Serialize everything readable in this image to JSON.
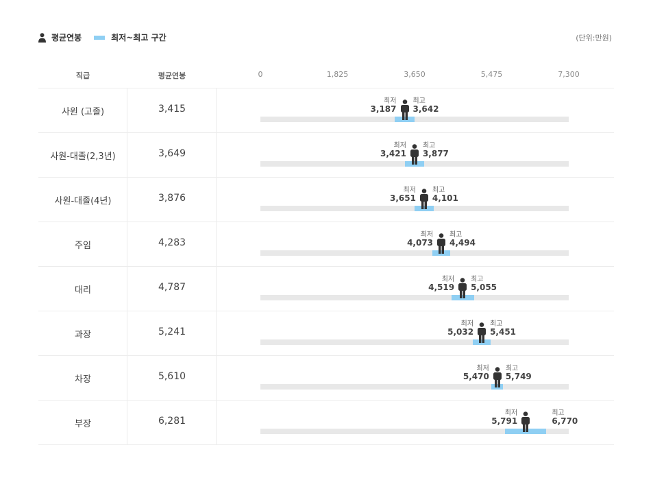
{
  "legend": {
    "avg_label": "평균연봉",
    "range_label": "최저~최고 구간",
    "unit": "(단위:만원)"
  },
  "headers": {
    "rank": "직급",
    "avg": "평균연봉"
  },
  "colors": {
    "range": "#8fcff3",
    "track": "#e8e8e8",
    "figure": "#333333"
  },
  "labels": {
    "min": "최저",
    "max": "최고"
  },
  "chart_data": {
    "type": "bar",
    "axis": {
      "min": 0,
      "max": 7300,
      "ticks": [
        "0",
        "1,825",
        "3,650",
        "5,475",
        "7,300"
      ],
      "tick_values": [
        0,
        1825,
        3650,
        5475,
        7300
      ]
    },
    "rows": [
      {
        "rank": "사원 (고졸)",
        "avg": 3415,
        "avg_text": "3,415",
        "min": 3187,
        "min_text": "3,187",
        "max": 3642,
        "max_text": "3,642"
      },
      {
        "rank": "사원-대졸(2,3년)",
        "avg": 3649,
        "avg_text": "3,649",
        "min": 3421,
        "min_text": "3,421",
        "max": 3877,
        "max_text": "3,877"
      },
      {
        "rank": "사원-대졸(4년)",
        "avg": 3876,
        "avg_text": "3,876",
        "min": 3651,
        "min_text": "3,651",
        "max": 4101,
        "max_text": "4,101"
      },
      {
        "rank": "주임",
        "avg": 4283,
        "avg_text": "4,283",
        "min": 4073,
        "min_text": "4,073",
        "max": 4494,
        "max_text": "4,494"
      },
      {
        "rank": "대리",
        "avg": 4787,
        "avg_text": "4,787",
        "min": 4519,
        "min_text": "4,519",
        "max": 5055,
        "max_text": "5,055"
      },
      {
        "rank": "과장",
        "avg": 5241,
        "avg_text": "5,241",
        "min": 5032,
        "min_text": "5,032",
        "max": 5451,
        "max_text": "5,451"
      },
      {
        "rank": "차장",
        "avg": 5610,
        "avg_text": "5,610",
        "min": 5470,
        "min_text": "5,470",
        "max": 5749,
        "max_text": "5,749"
      },
      {
        "rank": "부장",
        "avg": 6281,
        "avg_text": "6,281",
        "min": 5791,
        "min_text": "5,791",
        "max": 6770,
        "max_text": "6,770"
      }
    ]
  }
}
